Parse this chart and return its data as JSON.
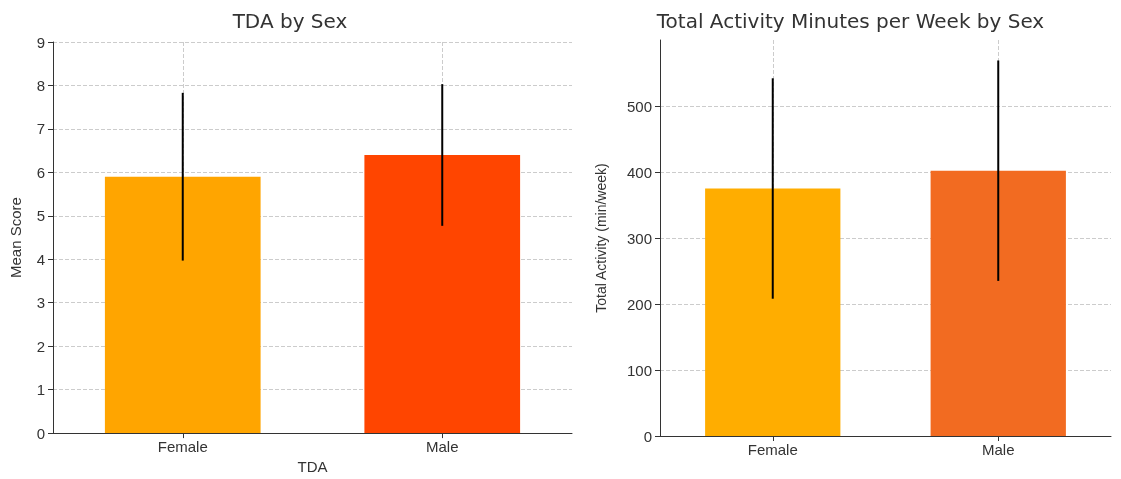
{
  "chart_data": [
    {
      "type": "bar",
      "title": "TDA by Sex",
      "xlabel": "TDA",
      "ylabel": "Mean Score",
      "categories": [
        "Female",
        "Male"
      ],
      "values": [
        5.9,
        6.4
      ],
      "colors": [
        "#ffa500",
        "#ff4500"
      ],
      "errors": [
        1.93,
        1.63
      ],
      "ylim": [
        0,
        9
      ],
      "yticks": [
        0,
        1,
        2,
        3,
        4,
        5,
        6,
        7,
        8,
        9
      ],
      "grid": true
    },
    {
      "type": "bar",
      "title": "Total Activity Minutes per Week by Sex",
      "ylabel": "Total Activity (min/week)",
      "categories": [
        "Female",
        "Male"
      ],
      "values": [
        375,
        402
      ],
      "colors": [
        "#ffad00",
        "#f26b21"
      ],
      "errors": [
        167,
        167
      ],
      "ylim": [
        0,
        600
      ],
      "yticks": [
        0,
        100,
        200,
        300,
        400,
        500
      ],
      "grid": true
    }
  ]
}
